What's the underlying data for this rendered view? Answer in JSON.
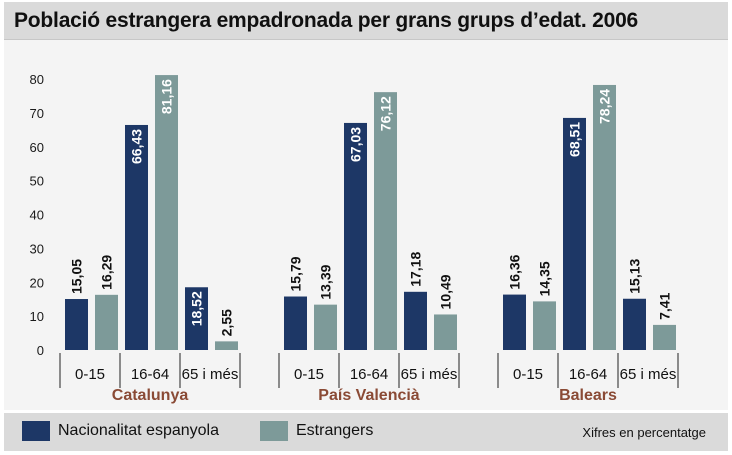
{
  "title": "Població estrangera empadronada per grans grups d’edat. 2006",
  "note": "Xifres en percentatge",
  "colors": {
    "nacionalitat": "#1d3766",
    "estrangers": "#7d9a99",
    "group_label": "#8a4a35",
    "band": "#dadada",
    "panel": "#f4f4f4"
  },
  "chart_data": {
    "type": "bar",
    "ylim": [
      0,
      80
    ],
    "yticks": [
      "0",
      "10",
      "20",
      "30",
      "40",
      "50",
      "60",
      "70",
      "80"
    ],
    "age_groups": [
      "0-15",
      "16-64",
      "65 i més"
    ],
    "regions": [
      {
        "name": "Catalunya",
        "nacionalitat": [
          15.05,
          66.43,
          18.52
        ],
        "estrangers": [
          16.29,
          81.16,
          2.55
        ],
        "labels_nac": [
          "15,05",
          "66,43",
          "18,52"
        ],
        "labels_est": [
          "16,29",
          "81,16",
          "2,55"
        ]
      },
      {
        "name": "País Valencià",
        "nacionalitat": [
          15.79,
          67.03,
          17.18
        ],
        "estrangers": [
          13.39,
          76.12,
          10.49
        ],
        "labels_nac": [
          "15,79",
          "67,03",
          "17,18"
        ],
        "labels_est": [
          "13,39",
          "76,12",
          "10,49"
        ]
      },
      {
        "name": "Balears",
        "nacionalitat": [
          16.36,
          68.51,
          15.13
        ],
        "estrangers": [
          14.35,
          78.24,
          7.41
        ],
        "labels_nac": [
          "16,36",
          "68,51",
          "15,13"
        ],
        "labels_est": [
          "14,35",
          "78,24",
          "7,41"
        ]
      }
    ],
    "series": [
      {
        "name": "Nacionalitat espanyola"
      },
      {
        "name": "Estrangers"
      }
    ]
  }
}
